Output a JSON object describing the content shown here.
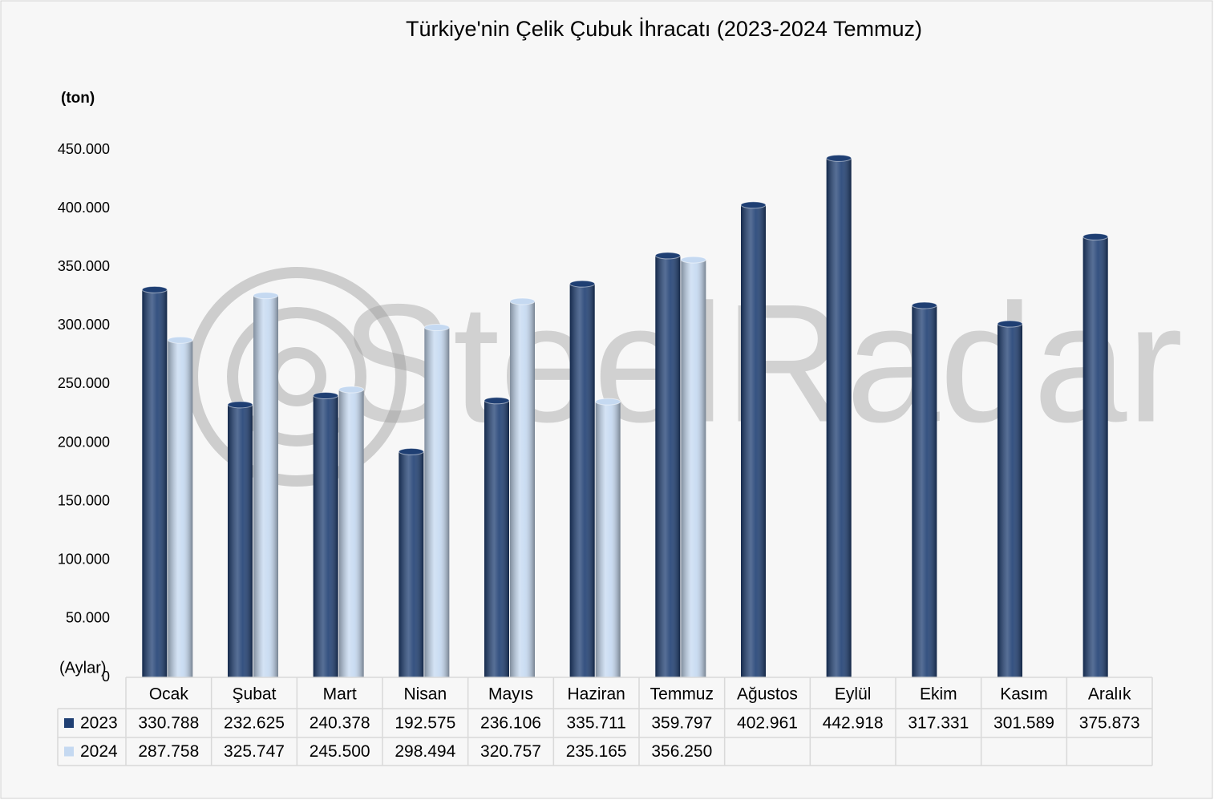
{
  "chart_data": {
    "type": "bar",
    "title": "Türkiye'nin Çelik Çubuk İhracatı (2023-2024 Temmuz)",
    "y_label": "(ton)",
    "x_label": "(Aylar)",
    "watermark": "SteelRadar",
    "categories": [
      "Ocak",
      "Şubat",
      "Mart",
      "Nisan",
      "Mayıs",
      "Haziran",
      "Temmuz",
      "Ağustos",
      "Eylül",
      "Ekim",
      "Kasım",
      "Aralık"
    ],
    "series": [
      {
        "name": "2023",
        "color": "#1f3f73",
        "values": [
          330788,
          232625,
          240378,
          192575,
          236106,
          335711,
          359797,
          402961,
          442918,
          317331,
          301589,
          375873
        ],
        "value_labels": [
          "330.788",
          "232.625",
          "240.378",
          "192.575",
          "236.106",
          "335.711",
          "359.797",
          "402.961",
          "442.918",
          "317.331",
          "301.589",
          "375.873"
        ]
      },
      {
        "name": "2024",
        "color": "#c5d9f1",
        "values": [
          287758,
          325747,
          245500,
          298494,
          320757,
          235165,
          356250,
          null,
          null,
          null,
          null,
          null
        ],
        "value_labels": [
          "287.758",
          "325.747",
          "245.500",
          "298.494",
          "320.757",
          "235.165",
          "356.250",
          null,
          null,
          null,
          null,
          null
        ]
      }
    ],
    "ylim": [
      0,
      450000
    ],
    "yticks": [
      0,
      {
        "value": 50000,
        "label": "50.000"
      },
      {
        "value": 100000,
        "label": "100.000"
      },
      {
        "value": 150000,
        "label": "150.000"
      },
      {
        "value": 200000,
        "label": "200.000"
      },
      {
        "value": 250000,
        "label": "250.000"
      },
      {
        "value": 300000,
        "label": "300.000"
      },
      {
        "value": 350000,
        "label": "350.000"
      },
      {
        "value": 400000,
        "label": "400.000"
      },
      {
        "value": 450000,
        "label": "450.000"
      }
    ],
    "grid": false
  }
}
